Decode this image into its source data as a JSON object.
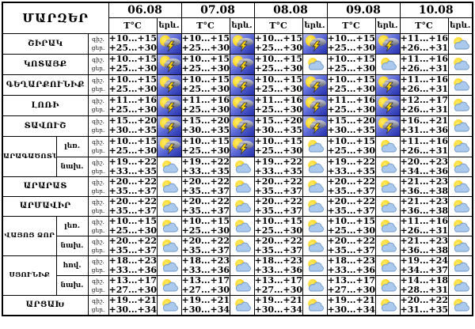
{
  "header": {
    "region_column": "ՄԱՐԶԵՐ",
    "dates": [
      "06.08",
      "07.08",
      "08.08",
      "09.08",
      "10.08"
    ],
    "temp_label": "T°C",
    "phenomenon_label": "երև."
  },
  "time_labels": {
    "night": "գիշ.",
    "day": "ցեր."
  },
  "icon_names": {
    "thunder": "sun-cloud-lightning-icon",
    "partly": "sun-cloud-icon"
  },
  "colors": {
    "border": "#000000",
    "text": "#000000",
    "sky_top": "#b6bef4",
    "sky_bottom": "#2531ab",
    "sun": "#ffd400",
    "cloud_gray": "#9394a2",
    "cloud_blue": "#aac9ec",
    "cloud_blue_outline": "#6f97c9",
    "lightning": "#ffd400"
  },
  "rows": [
    {
      "region": "ՇԻՐԱԿ",
      "region_span": 1,
      "sub": null,
      "days": [
        {
          "n": "+10...+15",
          "d": "+25...+30",
          "icon": "thunder"
        },
        {
          "n": "+10...+15",
          "d": "+25...+30",
          "icon": "thunder"
        },
        {
          "n": "+10...+15",
          "d": "+25...+30",
          "icon": "thunder"
        },
        {
          "n": "+10...+15",
          "d": "+25...+30",
          "icon": "thunder"
        },
        {
          "n": "+11...+16",
          "d": "+26...+31",
          "icon": "partly"
        }
      ]
    },
    {
      "region": "ԿՈՏԱՅՔ",
      "region_span": 1,
      "sub": null,
      "days": [
        {
          "n": "+10...+15",
          "d": "+25...+30",
          "icon": "thunder"
        },
        {
          "n": "+10...+15",
          "d": "+25...+30",
          "icon": "thunder"
        },
        {
          "n": "+10...+15",
          "d": "+25...+30",
          "icon": "partly"
        },
        {
          "n": "+10...+15",
          "d": "+25...+30",
          "icon": "partly"
        },
        {
          "n": "+11...+16",
          "d": "+26...+31",
          "icon": "partly"
        }
      ]
    },
    {
      "region": "ԳԵՂԱՐՔՈՒՆԻՔ",
      "region_span": 1,
      "sub": null,
      "days": [
        {
          "n": "+10...+15",
          "d": "+25...+30",
          "icon": "thunder"
        },
        {
          "n": "+10...+15",
          "d": "+25...+30",
          "icon": "thunder"
        },
        {
          "n": "+10...+15",
          "d": "+25...+30",
          "icon": "thunder"
        },
        {
          "n": "+10...+15",
          "d": "+25...+30",
          "icon": "thunder"
        },
        {
          "n": "+11...+16",
          "d": "+26...+31",
          "icon": "partly"
        }
      ]
    },
    {
      "region": "ԼՈՌԻ",
      "region_span": 1,
      "sub": null,
      "days": [
        {
          "n": "+11...+16",
          "d": "+25...+30",
          "icon": "thunder"
        },
        {
          "n": "+11...+16",
          "d": "+25...+30",
          "icon": "thunder"
        },
        {
          "n": "+11...+16",
          "d": "+25...+30",
          "icon": "thunder"
        },
        {
          "n": "+11...+16",
          "d": "+25...+30",
          "icon": "thunder"
        },
        {
          "n": "+12...+17",
          "d": "+26...+31",
          "icon": "partly"
        }
      ]
    },
    {
      "region": "ՏԱՎՈՒՇ",
      "region_span": 1,
      "sub": null,
      "days": [
        {
          "n": "+15...+20",
          "d": "+30...+35",
          "icon": "thunder"
        },
        {
          "n": "+15...+20",
          "d": "+30...+35",
          "icon": "thunder"
        },
        {
          "n": "+15...+20",
          "d": "+30...+35",
          "icon": "thunder"
        },
        {
          "n": "+15...+20",
          "d": "+30...+35",
          "icon": "thunder"
        },
        {
          "n": "+16...+21",
          "d": "+31...+36",
          "icon": "partly"
        }
      ]
    },
    {
      "region": "ԱՐԱԳԱԾՈՏՆ",
      "region_span": 2,
      "sub": "լեռ.",
      "days": [
        {
          "n": "+10...+15",
          "d": "+25...+30",
          "icon": "thunder"
        },
        {
          "n": "+10...+15",
          "d": "+25...+30",
          "icon": "thunder"
        },
        {
          "n": "+10...+15",
          "d": "+25...+30",
          "icon": "partly"
        },
        {
          "n": "+10...+15",
          "d": "+25...+30",
          "icon": "partly"
        },
        {
          "n": "+11...+16",
          "d": "+26...+31",
          "icon": "partly"
        }
      ]
    },
    {
      "region": null,
      "region_span": 0,
      "sub": "նախ.",
      "days": [
        {
          "n": "+19...+22",
          "d": "+33...+35",
          "icon": "partly"
        },
        {
          "n": "+19...+22",
          "d": "+33...+35",
          "icon": "partly"
        },
        {
          "n": "+19...+22",
          "d": "+33...+35",
          "icon": "partly"
        },
        {
          "n": "+19...+22",
          "d": "+33...+35",
          "icon": "partly"
        },
        {
          "n": "+20...+23",
          "d": "+34...+36",
          "icon": "partly"
        }
      ]
    },
    {
      "region": "ԱՐԱՐԱՏ",
      "region_span": 1,
      "sub": null,
      "days": [
        {
          "n": "+20...+22",
          "d": "+35...+37",
          "icon": "partly"
        },
        {
          "n": "+20...+22",
          "d": "+35...+37",
          "icon": "partly"
        },
        {
          "n": "+20...+22",
          "d": "+35...+37",
          "icon": "partly"
        },
        {
          "n": "+20...+22",
          "d": "+35...+37",
          "icon": "partly"
        },
        {
          "n": "+21...+23",
          "d": "+36...+38",
          "icon": "partly"
        }
      ]
    },
    {
      "region": "ԱՐՄԱՎԻՐ",
      "region_span": 1,
      "sub": null,
      "days": [
        {
          "n": "+20...+22",
          "d": "+35...+37",
          "icon": "partly"
        },
        {
          "n": "+20...+22",
          "d": "+35...+37",
          "icon": "partly"
        },
        {
          "n": "+20...+22",
          "d": "+35...+37",
          "icon": "partly"
        },
        {
          "n": "+20...+22",
          "d": "+35...+37",
          "icon": "partly"
        },
        {
          "n": "+21...+23",
          "d": "+36...+38",
          "icon": "partly"
        }
      ]
    },
    {
      "region": "ՎԱՅՈՑ ՁՈՐ",
      "region_span": 2,
      "sub": "լեռ.",
      "days": [
        {
          "n": "+10...+15",
          "d": "+25...+30",
          "icon": "partly"
        },
        {
          "n": "+10...+15",
          "d": "+25...+30",
          "icon": "partly"
        },
        {
          "n": "+10...+15",
          "d": "+25...+30",
          "icon": "partly"
        },
        {
          "n": "+10...+15",
          "d": "+25...+30",
          "icon": "partly"
        },
        {
          "n": "+11...+16",
          "d": "+26...+31",
          "icon": "partly"
        }
      ]
    },
    {
      "region": null,
      "region_span": 0,
      "sub": "նախ.",
      "days": [
        {
          "n": "+20...+22",
          "d": "+35...+37",
          "icon": "partly"
        },
        {
          "n": "+20...+22",
          "d": "+35...+37",
          "icon": "partly"
        },
        {
          "n": "+20...+22",
          "d": "+35...+37",
          "icon": "partly"
        },
        {
          "n": "+20...+22",
          "d": "+35...+37",
          "icon": "partly"
        },
        {
          "n": "+21...+23",
          "d": "+36...+38",
          "icon": "partly"
        }
      ]
    },
    {
      "region": "ՍՅՈՒՆԻՔ",
      "region_span": 2,
      "sub": "հով.",
      "days": [
        {
          "n": "+18...+23",
          "d": "+33...+36",
          "icon": "partly"
        },
        {
          "n": "+18...+23",
          "d": "+33...+36",
          "icon": "partly"
        },
        {
          "n": "+18...+23",
          "d": "+33...+36",
          "icon": "partly"
        },
        {
          "n": "+18...+23",
          "d": "+33...+36",
          "icon": "partly"
        },
        {
          "n": "+19...+24",
          "d": "+34...+37",
          "icon": "partly"
        }
      ]
    },
    {
      "region": null,
      "region_span": 0,
      "sub": "նախ.",
      "days": [
        {
          "n": "+13...+17",
          "d": "+27...+30",
          "icon": "partly"
        },
        {
          "n": "+13...+17",
          "d": "+27...+30",
          "icon": "partly"
        },
        {
          "n": "+13...+17",
          "d": "+27...+30",
          "icon": "partly"
        },
        {
          "n": "+13...+17",
          "d": "+27...+30",
          "icon": "partly"
        },
        {
          "n": "+14...+18",
          "d": "+28...+31",
          "icon": "partly"
        }
      ]
    },
    {
      "region": "ԱՐՑԱԽ",
      "region_span": 1,
      "sub": null,
      "days": [
        {
          "n": "+19...+21",
          "d": "+30...+34",
          "icon": "partly"
        },
        {
          "n": "+19...+21",
          "d": "+30...+34",
          "icon": "partly"
        },
        {
          "n": "+19...+21",
          "d": "+30...+34",
          "icon": "partly"
        },
        {
          "n": "+19...+21",
          "d": "+30...+34",
          "icon": "partly"
        },
        {
          "n": "+20...+22",
          "d": "+31...+35",
          "icon": "partly"
        }
      ]
    }
  ]
}
